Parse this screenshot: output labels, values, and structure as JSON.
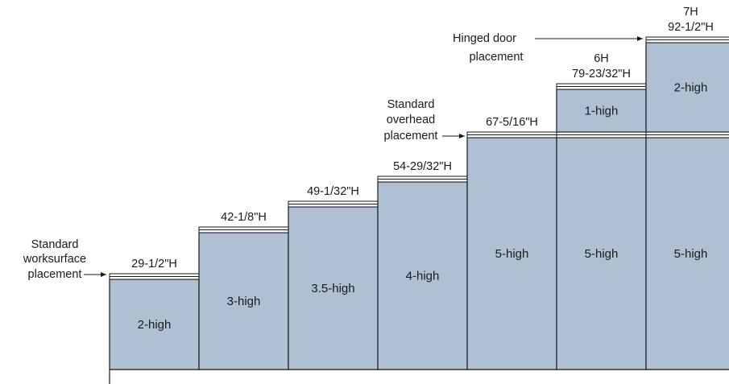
{
  "colors": {
    "panel_fill": "#afc0d2",
    "stroke": "#1a1a1a",
    "background": "#ffffff"
  },
  "columns": [
    {
      "height_label": "29-1/2\"H",
      "sections": [
        "2-high"
      ]
    },
    {
      "height_label": "42-1/8\"H",
      "sections": [
        "3-high"
      ]
    },
    {
      "height_label": "49-1/32\"H",
      "sections": [
        "3.5-high"
      ]
    },
    {
      "height_label": "54-29/32\"H",
      "sections": [
        "4-high"
      ]
    },
    {
      "height_label": "67-5/16\"H",
      "sections": [
        "5-high"
      ]
    },
    {
      "height_label": "79-23/32\"H",
      "tier_label": "6H",
      "sections": [
        "5-high",
        "1-high"
      ]
    },
    {
      "height_label": "92-1/2\"H",
      "tier_label": "7H",
      "sections": [
        "5-high",
        "2-high"
      ]
    }
  ],
  "callouts": {
    "worksurface": [
      "Standard",
      "worksurface",
      "placement"
    ],
    "overhead": [
      "Standard",
      "overhead",
      "placement"
    ],
    "hinged_door": [
      "Hinged door",
      "placement"
    ]
  }
}
